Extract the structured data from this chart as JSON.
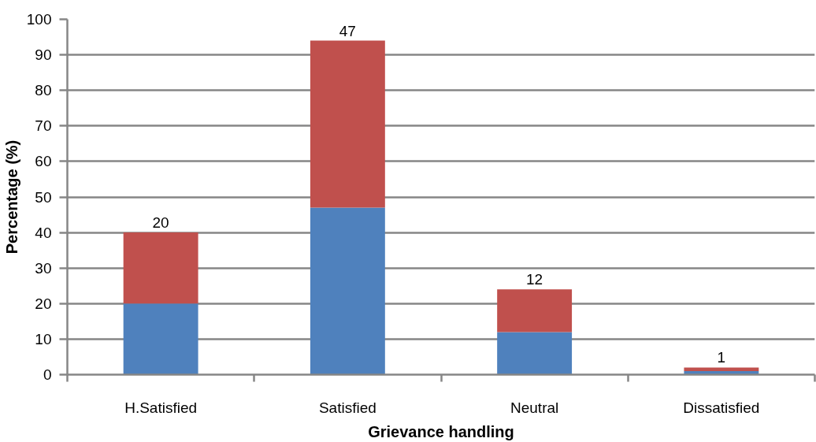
{
  "chart_data": {
    "type": "bar",
    "stacked": true,
    "xlabel": "Grievance handling",
    "ylabel": "Percentage (%)",
    "categories": [
      "H.Satisfied",
      "Satisfied",
      "Neutral",
      "Dissatisfied"
    ],
    "series": [
      {
        "color": "#4f81bd",
        "values": [
          20,
          47,
          12,
          1
        ]
      },
      {
        "color": "#c0504d",
        "values": [
          20,
          47,
          12,
          1
        ],
        "value_labels": [
          "20",
          "47",
          "12",
          "1"
        ]
      }
    ],
    "ylim": [
      0,
      100
    ],
    "yticks": [
      0,
      10,
      20,
      30,
      40,
      50,
      60,
      70,
      80,
      90,
      100
    ],
    "grid": "y"
  }
}
